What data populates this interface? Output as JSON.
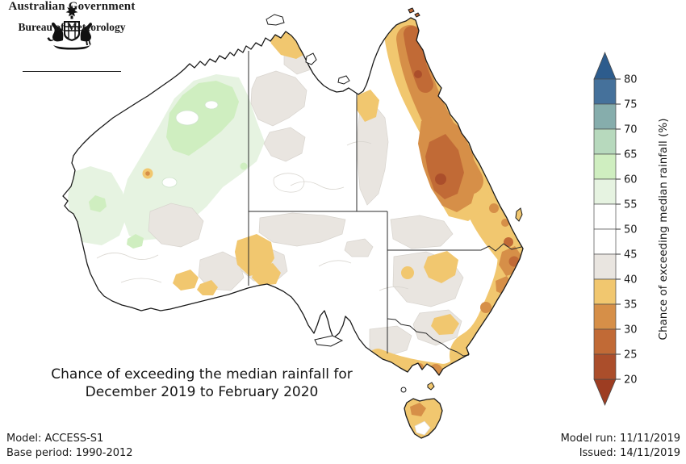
{
  "header": {
    "government": "Australian Government",
    "bureau": "Bureau of Meteorology"
  },
  "caption": {
    "line1": "Chance of exceeding the median rainfall for",
    "line2": "December 2019 to February 2020"
  },
  "footer": {
    "model": "Model: ACCESS-S1",
    "base_period": "Base period: 1990-2012",
    "model_run": "Model run: 11/11/2019",
    "issued": "Issued: 14/11/2019"
  },
  "legend": {
    "title": "Chance of exceeding median rainfall (%)",
    "ticks": [
      80,
      75,
      70,
      65,
      60,
      55,
      50,
      45,
      40,
      35,
      30,
      25,
      20
    ],
    "segments": [
      "#45719b",
      "#86adac",
      "#b7d9bd",
      "#cfeec0",
      "#e6f3e1",
      "#ffffff",
      "#ffffff",
      "#e9e5e0",
      "#f1c76f",
      "#d68f48",
      "#c16a36",
      "#ab4e2b"
    ],
    "above_color": "#2d5c8d",
    "below_color": "#9d3d22",
    "outline_color": "#4a4a4a"
  },
  "chart_data": {
    "type": "heatmap",
    "title": "Chance of exceeding the median rainfall for December 2019 to February 2020",
    "colorbar_label": "Chance of exceeding median rainfall (%)",
    "colorbar_ticks": [
      80,
      75,
      70,
      65,
      60,
      55,
      50,
      45,
      40,
      35,
      30,
      25,
      20
    ],
    "colorbar_open_ends": [
      "below 20",
      "above 80"
    ],
    "legend_position": "right",
    "region_values_percent": {
      "cape_york_and_queensland_east_coast": "20-35",
      "queensland_inland_east": "25-40",
      "top_end_northern_territory": "30-40",
      "nsw_east_coast": "25-40",
      "victoria_south_coast": "30-40",
      "tasmania": "30-40",
      "sa_wa_border_patches": "35-40",
      "scattered_interior_patches": "40-45",
      "central_and_southern_interior": "45-55",
      "northwest_western_australia": "55-65"
    }
  }
}
